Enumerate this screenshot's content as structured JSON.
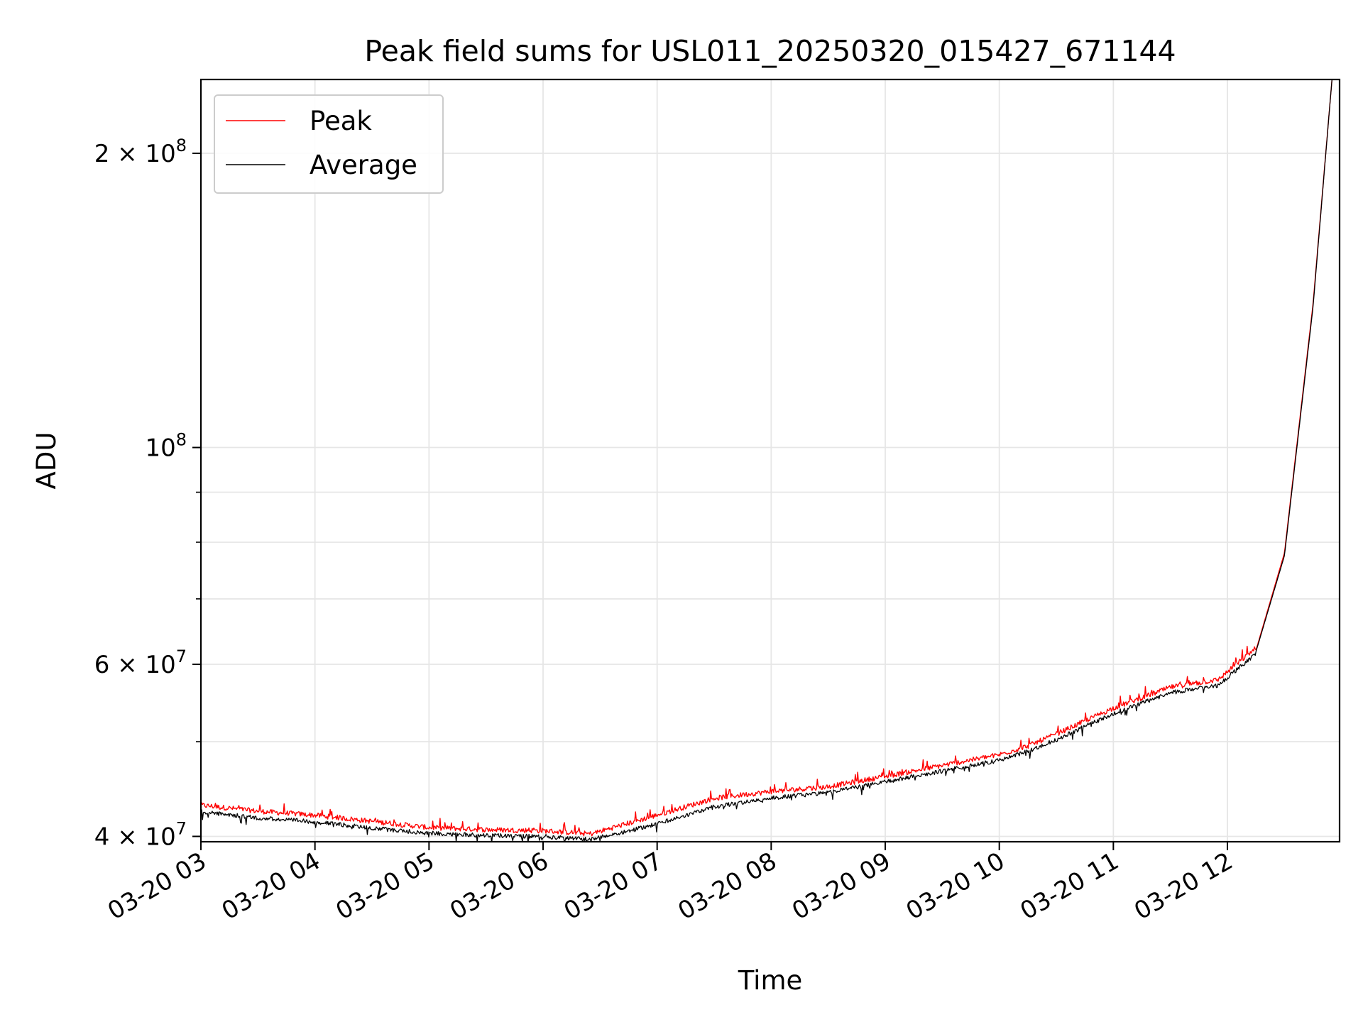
{
  "chart_data": {
    "type": "line",
    "title": "Peak field sums for USL011_20250320_015427_671144",
    "xlabel": "Time",
    "ylabel": "ADU",
    "y_scale": "log",
    "grid": true,
    "legend_position": "top-left",
    "x_tick_labels": [
      "03-20 03",
      "03-20 04",
      "03-20 05",
      "03-20 06",
      "03-20 07",
      "03-20 08",
      "03-20 09",
      "03-20 10",
      "03-20 11",
      "03-20 12"
    ],
    "xlim": [
      "2025-03-20 03:00",
      "2025-03-20 12:59"
    ],
    "y_ticks": [
      {
        "value": 40000000,
        "label": "4 × 10^7"
      },
      {
        "value": 60000000,
        "label": "6 × 10^7"
      },
      {
        "value": 100000000,
        "label": "10^8"
      },
      {
        "value": 200000000,
        "label": "2 × 10^8"
      }
    ],
    "ylim": [
      39500000,
      238000000
    ],
    "series": [
      {
        "name": "Peak",
        "color": "#ff0000",
        "x": [
          "2025-03-20 03:00",
          "2025-03-20 03:30",
          "2025-03-20 04:00",
          "2025-03-20 04:30",
          "2025-03-20 05:00",
          "2025-03-20 05:30",
          "2025-03-20 06:00",
          "2025-03-20 06:25",
          "2025-03-20 07:00",
          "2025-03-20 07:30",
          "2025-03-20 08:00",
          "2025-03-20 08:30",
          "2025-03-20 09:00",
          "2025-03-20 09:30",
          "2025-03-20 10:00",
          "2025-03-20 10:15",
          "2025-03-20 10:30",
          "2025-03-20 11:00",
          "2025-03-20 11:30",
          "2025-03-20 11:55",
          "2025-03-20 12:15",
          "2025-03-20 12:30",
          "2025-03-20 12:45",
          "2025-03-20 12:55"
        ],
        "values": [
          42800000,
          42200000,
          41800000,
          41200000,
          40600000,
          40400000,
          40300000,
          40000000,
          41800000,
          43500000,
          44200000,
          44700000,
          45800000,
          47000000,
          48200000,
          49200000,
          50600000,
          53800000,
          56500000,
          57500000,
          62000000,
          78000000,
          140000000,
          238000000
        ]
      },
      {
        "name": "Average",
        "color": "#000000",
        "x": [
          "2025-03-20 03:00",
          "2025-03-20 03:30",
          "2025-03-20 04:00",
          "2025-03-20 04:30",
          "2025-03-20 05:00",
          "2025-03-20 05:30",
          "2025-03-20 06:00",
          "2025-03-20 06:25",
          "2025-03-20 07:00",
          "2025-03-20 07:30",
          "2025-03-20 08:00",
          "2025-03-20 08:30",
          "2025-03-20 09:00",
          "2025-03-20 09:30",
          "2025-03-20 10:00",
          "2025-03-20 10:15",
          "2025-03-20 10:30",
          "2025-03-20 11:00",
          "2025-03-20 11:30",
          "2025-03-20 11:55",
          "2025-03-20 12:15",
          "2025-03-20 12:30",
          "2025-03-20 12:45",
          "2025-03-20 12:55"
        ],
        "values": [
          42600000,
          42000000,
          41600000,
          41000000,
          40500000,
          40300000,
          40200000,
          39900000,
          41400000,
          43100000,
          44000000,
          44600000,
          45700000,
          46900000,
          48100000,
          49100000,
          50500000,
          53700000,
          56400000,
          57400000,
          61800000,
          77500000,
          139000000,
          238000000
        ]
      }
    ]
  }
}
